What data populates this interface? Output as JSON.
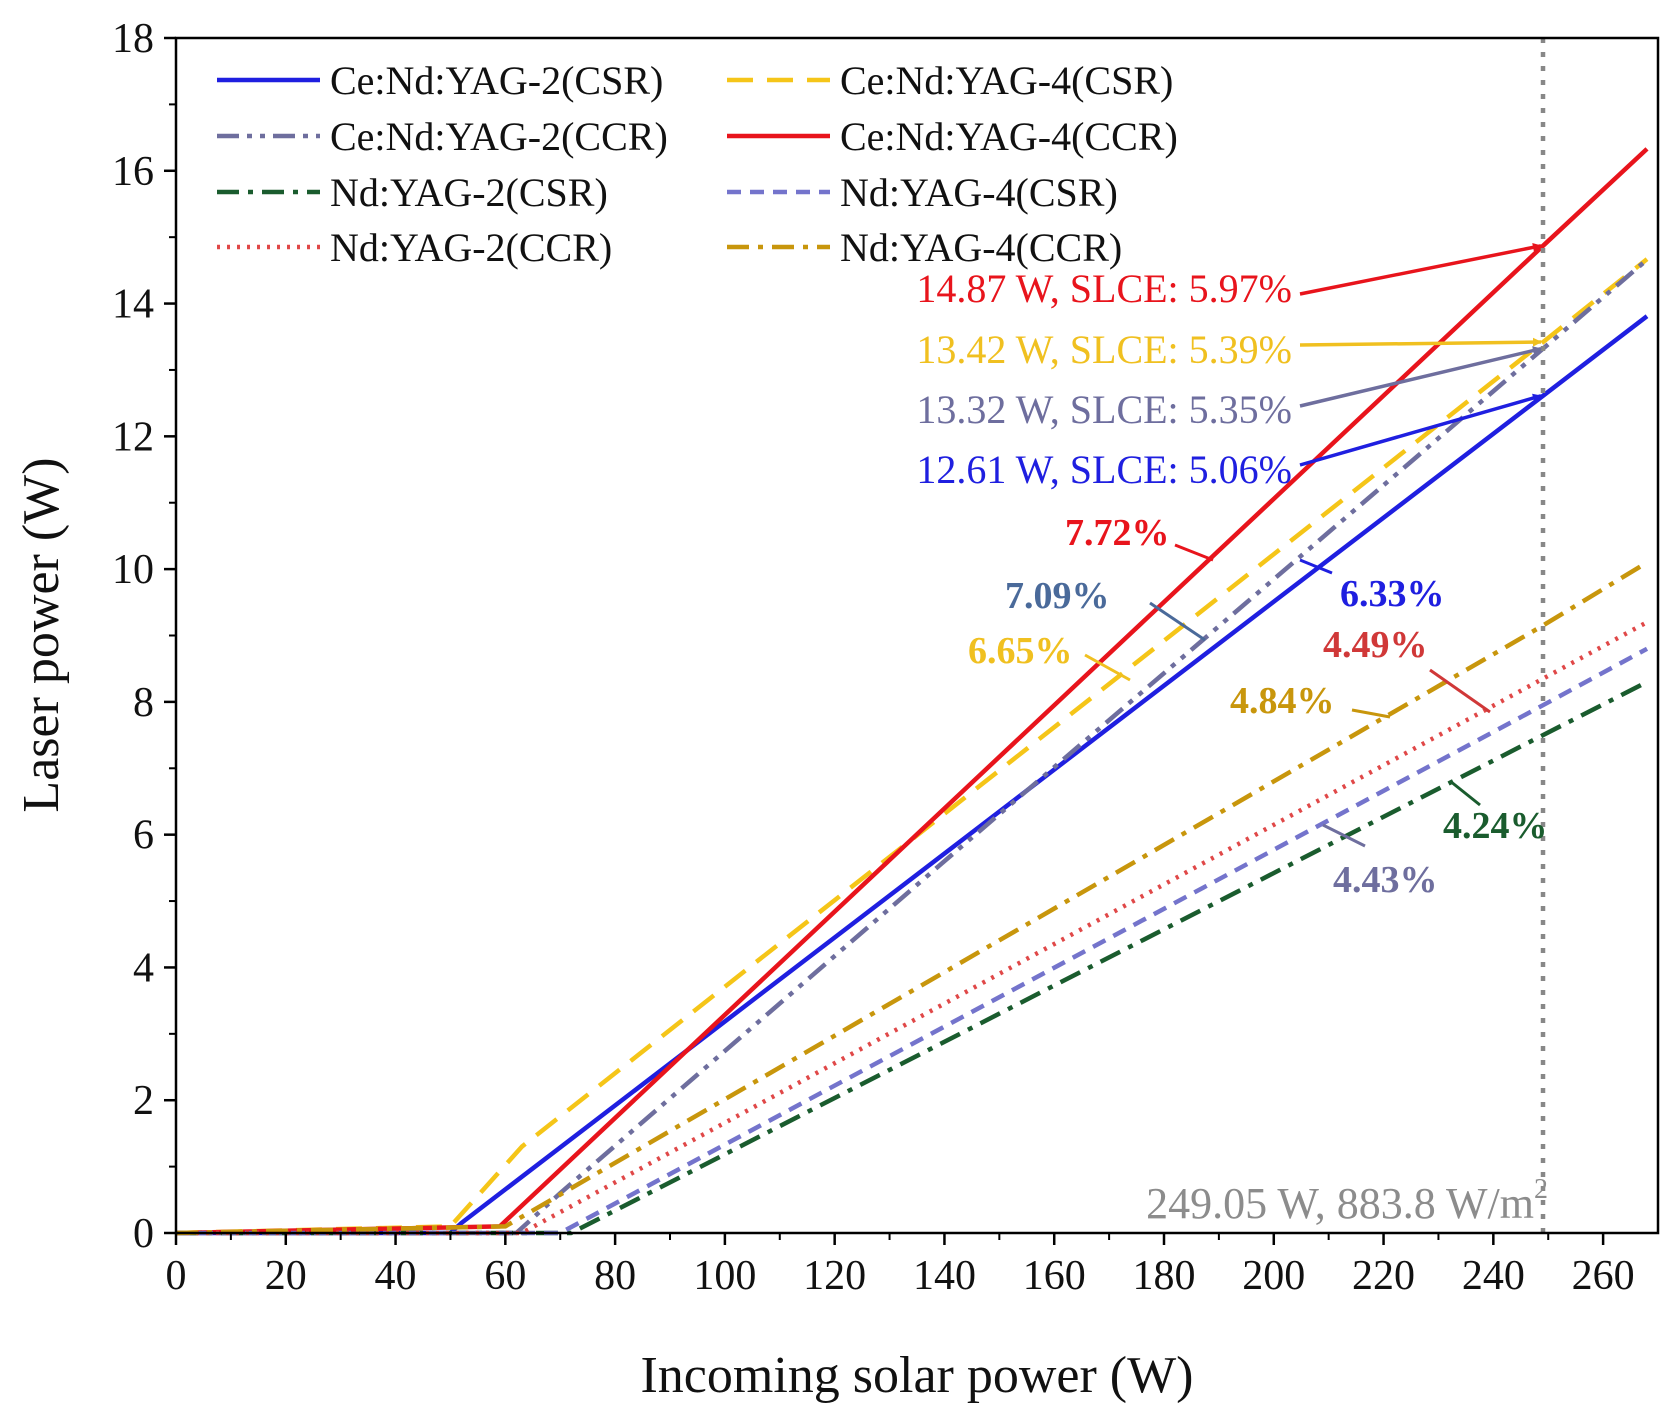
{
  "chart_data": {
    "type": "line",
    "title": "",
    "xlabel": "Incoming solar power (W)",
    "ylabel": "Laser power (W)",
    "xlim": [
      0,
      270
    ],
    "ylim": [
      0,
      18
    ],
    "x_ticks": [
      0,
      20,
      40,
      60,
      80,
      100,
      120,
      140,
      160,
      180,
      200,
      220,
      240,
      260
    ],
    "y_ticks": [
      0,
      2,
      4,
      6,
      8,
      10,
      12,
      14,
      16,
      18
    ],
    "grid": false,
    "legend_position": "top-left",
    "series": [
      {
        "name": "Ce:Nd:YAG-2(CSR)",
        "color": "#1f1fe0",
        "dash": "solid",
        "x": [
          0,
          50,
          52,
          249.05,
          268
        ],
        "y": [
          0,
          0,
          0.15,
          12.61,
          13.81
        ]
      },
      {
        "name": "Ce:Nd:YAG-4(CSR)",
        "color": "#f5c518",
        "dash": "dash",
        "x": [
          0,
          50,
          63,
          249.05,
          268
        ],
        "y": [
          0,
          0.1,
          1.3,
          13.42,
          14.67
        ]
      },
      {
        "name": "Ce:Nd:YAG-2(CCR)",
        "color": "#6e6e9e",
        "dash": "dashdotdot",
        "x": [
          0,
          62,
          70,
          140,
          249.05,
          268
        ],
        "y": [
          0,
          0,
          0.6,
          5.6,
          13.32,
          14.66
        ]
      },
      {
        "name": "Ce:Nd:YAG-4(CCR)",
        "color": "#e8141c",
        "dash": "solid",
        "x": [
          0,
          59,
          249.05,
          268
        ],
        "y": [
          0,
          0.1,
          14.87,
          16.33
        ]
      },
      {
        "name": "Nd:YAG-2(CSR)",
        "color": "#1a5c2e",
        "dash": "dashdot",
        "x": [
          0,
          72,
          249.05,
          268
        ],
        "y": [
          0,
          0,
          7.5,
          8.3
        ]
      },
      {
        "name": "Nd:YAG-4(CSR)",
        "color": "#7474cc",
        "dash": "shortdash",
        "x": [
          0,
          70,
          249.05,
          268
        ],
        "y": [
          0,
          0,
          7.95,
          8.8
        ]
      },
      {
        "name": "Nd:YAG-2(CCR)",
        "color": "#e04848",
        "dash": "dot",
        "x": [
          0,
          63,
          249.05,
          268
        ],
        "y": [
          0,
          0,
          8.35,
          9.2
        ]
      },
      {
        "name": "Nd:YAG-4(CCR)",
        "color": "#c8960c",
        "dash": "dashdot",
        "x": [
          0,
          60,
          249.05,
          268
        ],
        "y": [
          0,
          0.1,
          9.15,
          10.1
        ]
      }
    ],
    "vline": {
      "x": 249.05,
      "color": "#888888",
      "label": "249.05 W, 883.8 W/m",
      "label_sup": "2"
    },
    "value_annotations": [
      {
        "text": "14.87 W, SLCE: 5.97%",
        "color": "#e8141c",
        "arrow_to": [
          249.05,
          14.87
        ]
      },
      {
        "text": "13.42 W, SLCE: 5.39%",
        "color": "#f0c020",
        "arrow_to": [
          249.05,
          13.42
        ]
      },
      {
        "text": "13.32 W, SLCE: 5.35%",
        "color": "#6e6e9e",
        "arrow_to": [
          249.05,
          13.32
        ]
      },
      {
        "text": "12.61 W, SLCE: 5.06%",
        "color": "#1f1fe0",
        "arrow_to": [
          249.05,
          12.61
        ]
      }
    ],
    "slope_annotations": [
      {
        "text": "7.72%",
        "color": "#e8141c"
      },
      {
        "text": "7.09%",
        "color": "#4a6a9a"
      },
      {
        "text": "6.65%",
        "color": "#f0c020"
      },
      {
        "text": "6.33%",
        "color": "#1f1fe0"
      },
      {
        "text": "4.49%",
        "color": "#d03838"
      },
      {
        "text": "4.84%",
        "color": "#c8960c"
      },
      {
        "text": "4.24%",
        "color": "#1a5c2e"
      },
      {
        "text": "4.43%",
        "color": "#6e6e9e"
      }
    ]
  }
}
